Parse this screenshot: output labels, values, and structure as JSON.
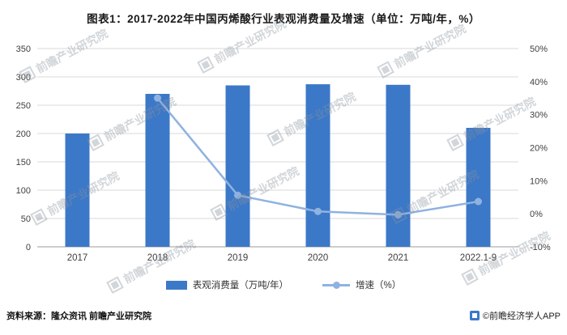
{
  "title": "图表1：2017-2022年中国丙烯酸行业表观消费量及增速（单位：万吨/年，%）",
  "chart_data": {
    "type": "bar",
    "subtype": "bar-line combo",
    "title": "图表1：2017-2022年中国丙烯酸行业表观消费量及增速（单位：万吨/年，%）",
    "categories": [
      "2017",
      "2018",
      "2019",
      "2020",
      "2021",
      "2022.1-9"
    ],
    "series": [
      {
        "name": "表观消费量（万吨/年）",
        "type": "bar",
        "axis": "left",
        "values": [
          200,
          270,
          285,
          287,
          286,
          210
        ]
      },
      {
        "name": "增速（%）",
        "type": "line",
        "axis": "right",
        "values": [
          null,
          35,
          5.6,
          0.7,
          -0.3,
          3.7
        ]
      }
    ],
    "left_axis": {
      "min": 0,
      "max": 350,
      "step": 50,
      "ticks": [
        "0",
        "50",
        "100",
        "150",
        "200",
        "250",
        "300",
        "350"
      ]
    },
    "right_axis": {
      "min": -10,
      "max": 50,
      "step": 10,
      "ticks": [
        "-10%",
        "0%",
        "10%",
        "20%",
        "30%",
        "40%",
        "50%"
      ]
    },
    "grid": true,
    "legend_position": "bottom"
  },
  "legend": {
    "bar_label": "表观消费量（万吨/年）",
    "line_label": "增速（%）"
  },
  "watermark": {
    "text": "前瞻产业研究院"
  },
  "footer": {
    "source": "资料来源：隆众资讯 前瞻产业研究院",
    "copyright": "©前瞻经济学人APP"
  },
  "colors": {
    "bar": "#3C78C8",
    "line": "#8FB2E0",
    "grid": "#D9D9D9",
    "axis": "#9B9B9B",
    "text": "#404040"
  }
}
